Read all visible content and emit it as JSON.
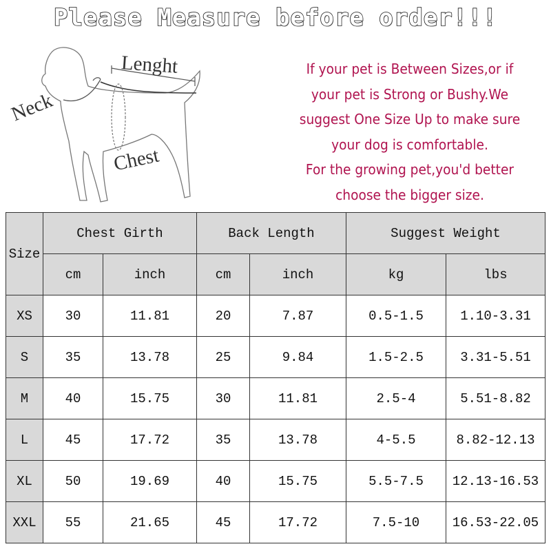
{
  "title": "Please Measure before order!!!",
  "diagram": {
    "neck_label": "Neck",
    "length_label": "Lenght",
    "chest_label": "Chest"
  },
  "note_lines": [
    "If your pet is Between Sizes,or if",
    "your pet is Strong or Bushy.We",
    "suggest One Size Up to make sure",
    "your dog is comfortable.",
    "For the growing pet,you'd better",
    "choose the bigger size."
  ],
  "note_color": "#b0134f",
  "table": {
    "size_header": "Size",
    "groups": [
      "Chest Girth",
      "Back Length",
      "Suggest Weight"
    ],
    "units": [
      "cm",
      "inch",
      "cm",
      "inch",
      "kg",
      "lbs"
    ],
    "rows": [
      [
        "XS",
        "30",
        "11.81",
        "20",
        "7.87",
        "0.5-1.5",
        "1.10-3.31"
      ],
      [
        "S",
        "35",
        "13.78",
        "25",
        "9.84",
        "1.5-2.5",
        "3.31-5.51"
      ],
      [
        "M",
        "40",
        "15.75",
        "30",
        "11.81",
        "2.5-4",
        "5.51-8.82"
      ],
      [
        "L",
        "45",
        "17.72",
        "35",
        "13.78",
        "4-5.5",
        "8.82-12.13"
      ],
      [
        "XL",
        "50",
        "19.69",
        "40",
        "15.75",
        "5.5-7.5",
        "12.13-16.53"
      ],
      [
        "XXL",
        "55",
        "21.65",
        "45",
        "17.72",
        "7.5-10",
        "16.53-22.05"
      ]
    ]
  }
}
